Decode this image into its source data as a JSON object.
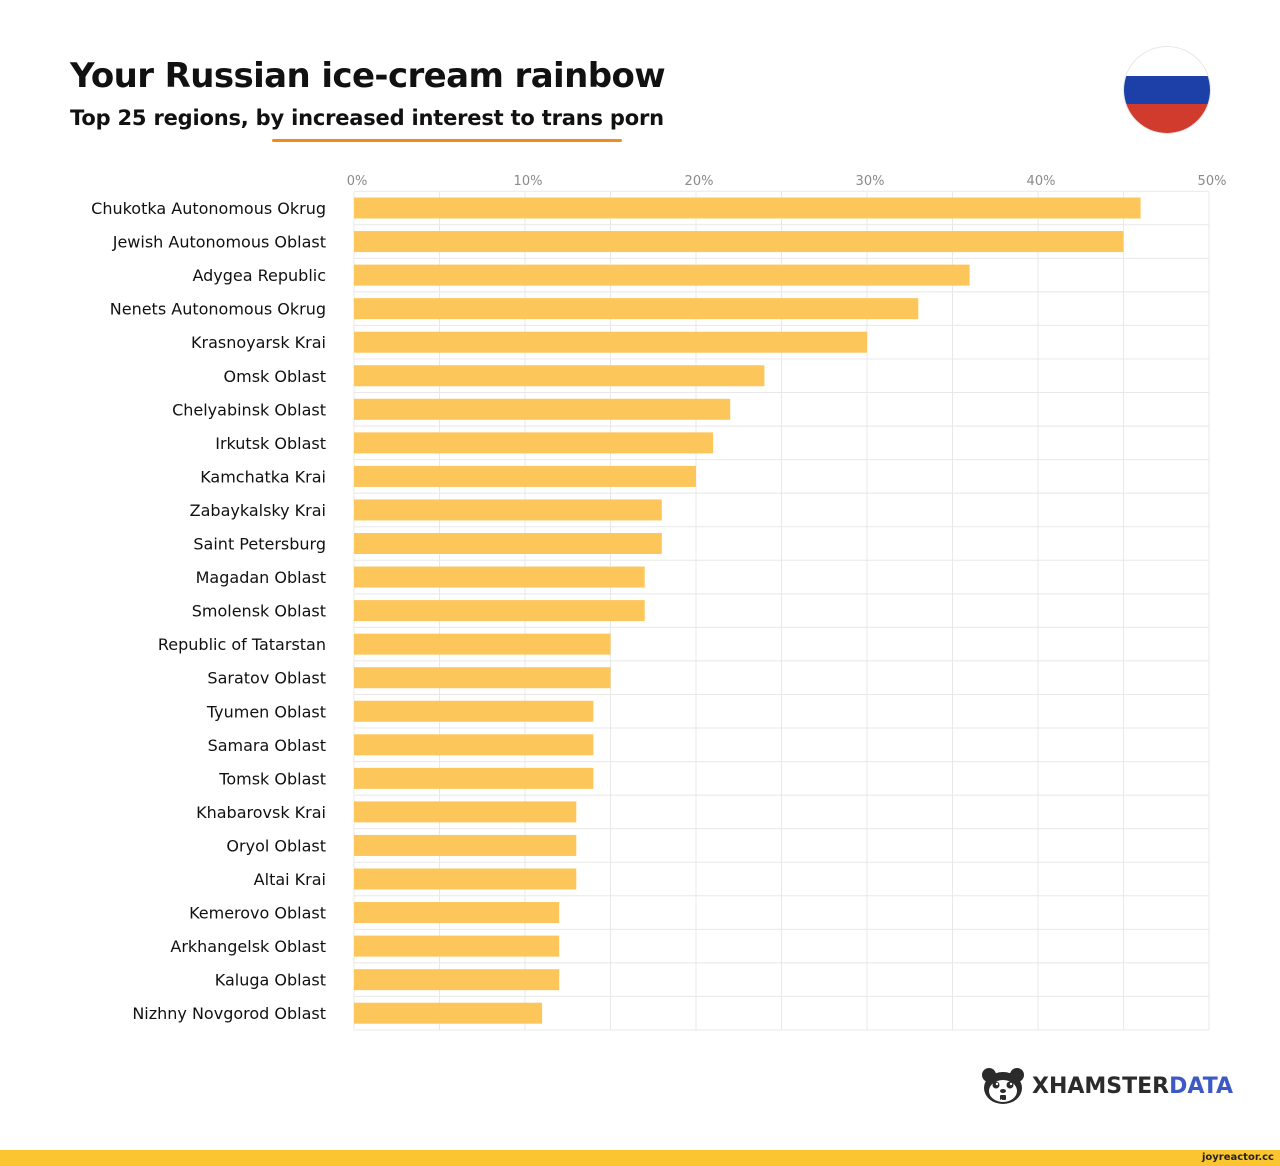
{
  "header": {
    "title": "Your Russian ice-cream rainbow",
    "subtitle": "Top 25 regions, by increased interest to trans porn"
  },
  "flag": {
    "icon": "russia-flag-icon",
    "stripes": [
      "#ffffff",
      "#1c3fa8",
      "#d13b2e"
    ]
  },
  "colors": {
    "bar": "#fdc65a",
    "accent_underline": "#f28b1d",
    "grid": "#e8e8e8",
    "tick_label": "#8a8a8a",
    "brand_dark": "#2b2b2b",
    "brand_blue": "#3c59c4",
    "footer_bar": "#fbc531"
  },
  "chart_data": {
    "type": "bar",
    "orientation": "horizontal",
    "categories": [
      "Chukotka Autonomous Okrug",
      "Jewish Autonomous Oblast",
      "Adygea Republic",
      "Nenets Autonomous Okrug",
      "Krasnoyarsk Krai",
      "Omsk Oblast",
      "Chelyabinsk Oblast",
      "Irkutsk Oblast",
      "Kamchatka Krai",
      "Zabaykalsky Krai",
      "Saint Petersburg",
      "Magadan Oblast",
      "Smolensk Oblast",
      "Republic of Tatarstan",
      "Saratov Oblast",
      "Tyumen Oblast",
      "Samara Oblast",
      "Tomsk Oblast",
      "Khabarovsk Krai",
      "Oryol Oblast",
      "Altai Krai",
      "Kemerovo Oblast",
      "Arkhangelsk Oblast",
      "Kaluga Oblast",
      "Nizhny Novgorod Oblast"
    ],
    "values": [
      46,
      45,
      36,
      33,
      30,
      24,
      22,
      21,
      20,
      18,
      18,
      17,
      17,
      15,
      15,
      14,
      14,
      14,
      13,
      13,
      13,
      12,
      12,
      12,
      11
    ],
    "xlim": [
      0,
      50
    ],
    "x_ticks": [
      0,
      10,
      20,
      30,
      40,
      50
    ],
    "x_tick_labels": [
      "0%",
      "10%",
      "20%",
      "30%",
      "40%",
      "50%"
    ],
    "x_axis_position": "top",
    "grid": true,
    "legend": "none"
  },
  "brand": {
    "icon": "hamster-logo-icon",
    "name_part1": "XHAMSTER",
    "name_part2": "DATA"
  },
  "footer": {
    "watermark": "joyreactor.cc"
  }
}
